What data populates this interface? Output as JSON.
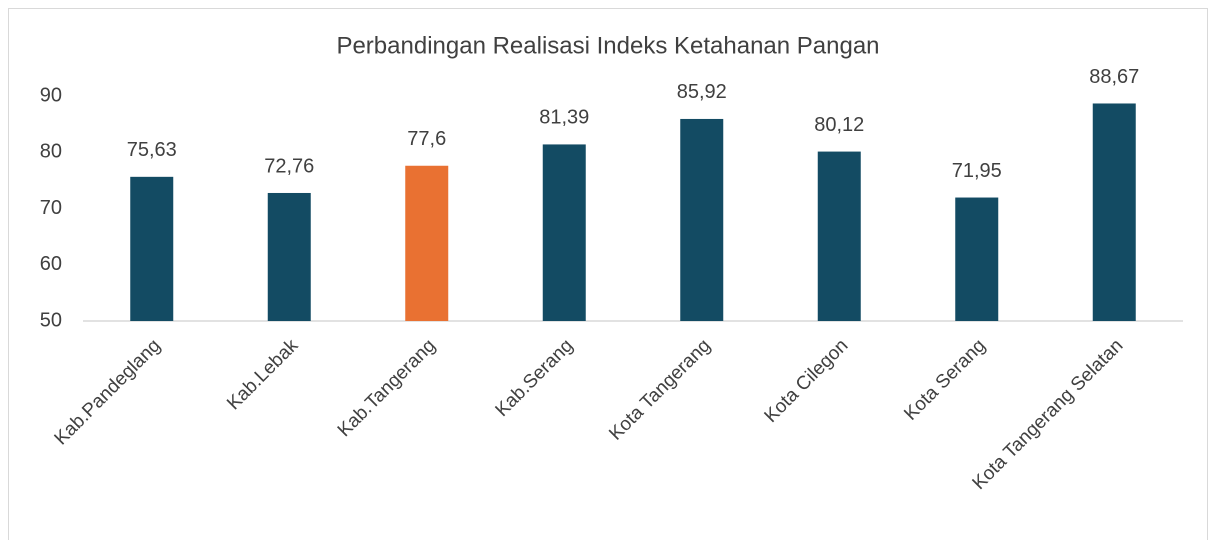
{
  "chart_data": {
    "type": "bar",
    "title": "Perbandingan Realisasi Indeks Ketahanan Pangan",
    "categories": [
      "Kab.Pandeglang",
      "Kab.Lebak",
      "Kab.Tangerang",
      "Kab.Serang",
      "Kota Tangerang",
      "Kota Cilegon",
      "Kota Serang",
      "Kota Tangerang Selatan"
    ],
    "values": [
      75.63,
      72.76,
      77.6,
      81.39,
      85.92,
      80.12,
      71.95,
      88.67
    ],
    "value_labels": [
      "75,63",
      "72,76",
      "77,6",
      "81,39",
      "85,92",
      "80,12",
      "71,95",
      "88,67"
    ],
    "colors": [
      "#134b63",
      "#134b63",
      "#e97132",
      "#134b63",
      "#134b63",
      "#134b63",
      "#134b63",
      "#134b63"
    ],
    "ylim": [
      50,
      90
    ],
    "yticks": [
      50,
      60,
      70,
      80,
      90
    ],
    "grid": false
  }
}
